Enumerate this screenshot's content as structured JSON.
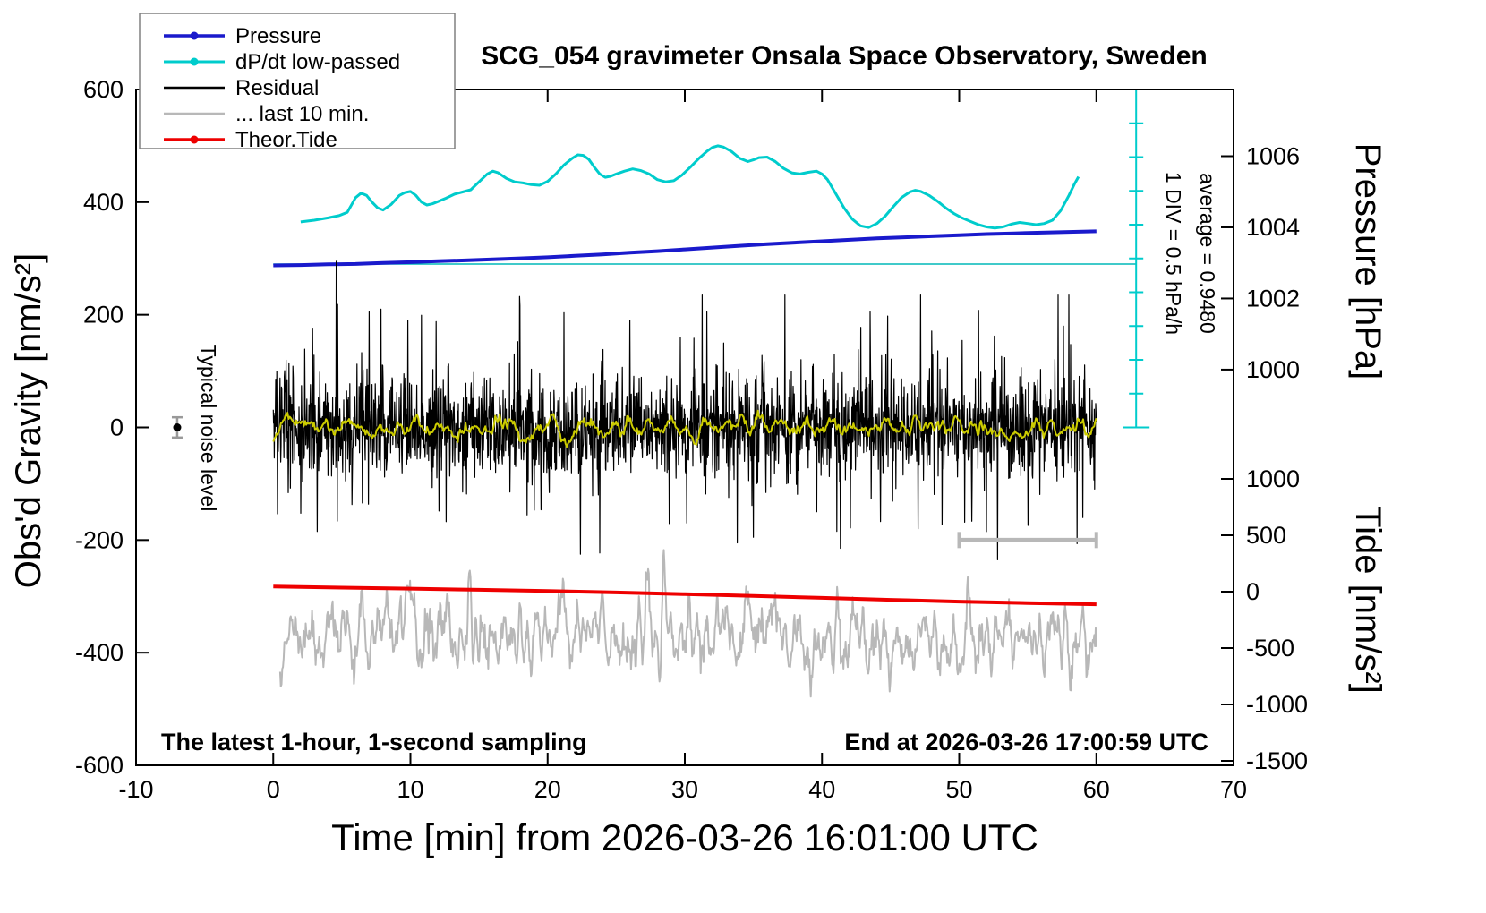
{
  "title": "SCG_054 gravimeter Onsala Space Observatory, Sweden",
  "annotations": {
    "noise_label": "Typical noise level",
    "div_label": "1 DIV = 0.5 hPa/h",
    "average_label": "average = 0.9480",
    "sampling_note": "The latest 1-hour, 1-second sampling",
    "end_note": "End at 2026-03-26 17:00:59 UTC"
  },
  "legend": {
    "items": [
      {
        "key": "pressure",
        "label": "Pressure",
        "color": "#1a1acc",
        "width": 3.5,
        "marker": true
      },
      {
        "key": "dpdt-low-passed",
        "label": "dP/dt low-passed",
        "color": "#00cccc",
        "width": 3,
        "marker": true
      },
      {
        "key": "residual",
        "label": "Residual",
        "color": "#000000",
        "width": 2.5,
        "marker": false
      },
      {
        "key": "last-10-min",
        "label": "... last 10 min.",
        "color": "#b8b8b8",
        "width": 2.5,
        "marker": false
      },
      {
        "key": "theor-tide",
        "label": "Theor.Tide",
        "color": "#ee0000",
        "width": 3.5,
        "marker": true
      }
    ]
  },
  "chart_data": {
    "type": "line",
    "title": "SCG_054 gravimeter Onsala Space Observatory, Sweden",
    "axes": {
      "x": {
        "label": "Time [min] from 2026-03-26 16:01:00 UTC",
        "min": -10,
        "max": 70,
        "ticks": [
          -10,
          0,
          10,
          20,
          30,
          40,
          50,
          60,
          70
        ]
      },
      "gravity": {
        "label": "Obs'd Gravity [nm/s²]",
        "min": -600,
        "max": 600,
        "ticks": [
          -600,
          -400,
          -200,
          0,
          200,
          400,
          600
        ]
      },
      "pressure": {
        "label": "Pressure [hPa]",
        "min": 988.875,
        "max": 1007.875,
        "ticks": [
          1000,
          1002,
          1004,
          1006
        ]
      },
      "tide": {
        "label": "Tide [nm/s²]",
        "min": -1539.7,
        "max": 4452.4,
        "ticks": [
          -1500,
          -1000,
          -500,
          0,
          500,
          1000
        ]
      }
    },
    "series": [
      {
        "name": "dpdt-average-line",
        "label": "dP/dt average line",
        "axis": "gravity",
        "color": "#00b8b8",
        "width": 1.5,
        "points": [
          [
            0,
            290
          ],
          [
            62.9,
            290
          ]
        ]
      },
      {
        "name": "dpdt-low-passed",
        "label": "dP/dt low-passed",
        "axis": "gravity",
        "color": "#00cccc",
        "width": 3,
        "points": [
          [
            2,
            365
          ],
          [
            3,
            368
          ],
          [
            4,
            372
          ],
          [
            4.8,
            376
          ],
          [
            5.4,
            382
          ],
          [
            6,
            408
          ],
          [
            6.4,
            416
          ],
          [
            6.8,
            412
          ],
          [
            7.2,
            400
          ],
          [
            7.6,
            390
          ],
          [
            8,
            386
          ],
          [
            8.6,
            396
          ],
          [
            9.2,
            412
          ],
          [
            9.6,
            417
          ],
          [
            10,
            419
          ],
          [
            10.4,
            412
          ],
          [
            10.8,
            400
          ],
          [
            11.2,
            395
          ],
          [
            11.6,
            397
          ],
          [
            12,
            401
          ],
          [
            12.6,
            407
          ],
          [
            13.2,
            414
          ],
          [
            13.8,
            418
          ],
          [
            14.4,
            422
          ],
          [
            15,
            436
          ],
          [
            15.6,
            450
          ],
          [
            16,
            455
          ],
          [
            16.4,
            452
          ],
          [
            17,
            442
          ],
          [
            17.6,
            436
          ],
          [
            18.2,
            434
          ],
          [
            18.8,
            431
          ],
          [
            19.4,
            430
          ],
          [
            20,
            437
          ],
          [
            20.6,
            450
          ],
          [
            21.2,
            466
          ],
          [
            21.8,
            478
          ],
          [
            22.2,
            484
          ],
          [
            22.6,
            483
          ],
          [
            23,
            476
          ],
          [
            23.4,
            462
          ],
          [
            23.8,
            450
          ],
          [
            24.2,
            444
          ],
          [
            24.6,
            446
          ],
          [
            25,
            450
          ],
          [
            25.6,
            455
          ],
          [
            26.2,
            459
          ],
          [
            26.8,
            456
          ],
          [
            27.4,
            450
          ],
          [
            28,
            440
          ],
          [
            28.6,
            436
          ],
          [
            29.2,
            438
          ],
          [
            29.8,
            448
          ],
          [
            30.4,
            462
          ],
          [
            31,
            477
          ],
          [
            31.6,
            490
          ],
          [
            32,
            497
          ],
          [
            32.4,
            500
          ],
          [
            32.8,
            498
          ],
          [
            33.4,
            490
          ],
          [
            34,
            478
          ],
          [
            34.6,
            472
          ],
          [
            35,
            475
          ],
          [
            35.4,
            479
          ],
          [
            36,
            480
          ],
          [
            36.6,
            472
          ],
          [
            37.2,
            460
          ],
          [
            37.8,
            452
          ],
          [
            38.4,
            450
          ],
          [
            39,
            453
          ],
          [
            39.6,
            455
          ],
          [
            40,
            450
          ],
          [
            40.4,
            440
          ],
          [
            41,
            415
          ],
          [
            41.6,
            390
          ],
          [
            42.2,
            370
          ],
          [
            42.8,
            358
          ],
          [
            43.4,
            355
          ],
          [
            44,
            362
          ],
          [
            44.6,
            375
          ],
          [
            45.2,
            392
          ],
          [
            45.8,
            408
          ],
          [
            46.4,
            418
          ],
          [
            46.8,
            421
          ],
          [
            47.2,
            419
          ],
          [
            47.8,
            412
          ],
          [
            48.4,
            402
          ],
          [
            49,
            390
          ],
          [
            49.6,
            380
          ],
          [
            50.2,
            372
          ],
          [
            50.8,
            366
          ],
          [
            51.4,
            360
          ],
          [
            52,
            356
          ],
          [
            52.6,
            354
          ],
          [
            53.2,
            356
          ],
          [
            53.8,
            361
          ],
          [
            54.4,
            364
          ],
          [
            55,
            362
          ],
          [
            55.6,
            360
          ],
          [
            56.2,
            362
          ],
          [
            56.8,
            368
          ],
          [
            57.4,
            385
          ],
          [
            58,
            412
          ],
          [
            58.4,
            432
          ],
          [
            58.7,
            445
          ]
        ]
      },
      {
        "name": "pressure",
        "label": "Pressure",
        "axis": "pressure",
        "color": "#1a1acc",
        "width": 4,
        "points": [
          [
            0,
            1002.93
          ],
          [
            2,
            1002.94
          ],
          [
            4,
            1002.96
          ],
          [
            6,
            1002.97
          ],
          [
            8,
            1003.0
          ],
          [
            10,
            1003.02
          ],
          [
            12,
            1003.05
          ],
          [
            14,
            1003.07
          ],
          [
            16,
            1003.1
          ],
          [
            18,
            1003.13
          ],
          [
            20,
            1003.16
          ],
          [
            22,
            1003.2
          ],
          [
            24,
            1003.24
          ],
          [
            26,
            1003.29
          ],
          [
            28,
            1003.33
          ],
          [
            30,
            1003.38
          ],
          [
            32,
            1003.43
          ],
          [
            34,
            1003.48
          ],
          [
            36,
            1003.53
          ],
          [
            38,
            1003.57
          ],
          [
            40,
            1003.61
          ],
          [
            42,
            1003.65
          ],
          [
            44,
            1003.69
          ],
          [
            46,
            1003.72
          ],
          [
            48,
            1003.75
          ],
          [
            50,
            1003.78
          ],
          [
            52,
            1003.81
          ],
          [
            54,
            1003.83
          ],
          [
            56,
            1003.85
          ],
          [
            58,
            1003.87
          ],
          [
            60,
            1003.89
          ]
        ]
      },
      {
        "name": "last-10-min",
        "label": "... last 10 min.",
        "axis": "tide",
        "color": "#b8b8b8",
        "width": 2,
        "gen": {
          "kind": "smooth_noise",
          "seed": 11,
          "n": 1150,
          "t0": 0.5,
          "t1": 60,
          "mean": -390,
          "scale": 380,
          "window": 5,
          "clip": [
            -1400,
            530
          ]
        }
      },
      {
        "name": "theor-tide",
        "label": "Theor.Tide",
        "axis": "tide",
        "color": "#ee0000",
        "width": 4,
        "points": [
          [
            0,
            45
          ],
          [
            5,
            36
          ],
          [
            10,
            27
          ],
          [
            15,
            17
          ],
          [
            20,
            6
          ],
          [
            25,
            -7
          ],
          [
            30,
            -22
          ],
          [
            35,
            -38
          ],
          [
            40,
            -55
          ],
          [
            45,
            -72
          ],
          [
            50,
            -88
          ],
          [
            55,
            -101
          ],
          [
            60,
            -112
          ]
        ]
      },
      {
        "name": "residual",
        "label": "Residual",
        "axis": "gravity",
        "color": "#000000",
        "width": 1.2,
        "gen": {
          "kind": "noise",
          "seed": 3,
          "n": 2300,
          "t0": 0,
          "t1": 60,
          "mean": 0,
          "sigma": 40,
          "burst_p": 0.13,
          "burst_sigma": 85,
          "clip": [
            -235,
            235
          ],
          "spikes": [
            [
              4.6,
              295
            ],
            [
              7.0,
              205
            ],
            [
              9.8,
              190
            ],
            [
              22.4,
              -225
            ],
            [
              26,
              190
            ],
            [
              31.6,
              205
            ],
            [
              35,
              -195
            ],
            [
              43.5,
              205
            ],
            [
              47,
              -180
            ],
            [
              52,
              -185
            ],
            [
              57.6,
              180
            ],
            [
              59,
              -160
            ]
          ]
        }
      },
      {
        "name": "residual-low-passed",
        "label": "Residual low-passed",
        "axis": "gravity",
        "color": "#cccc00",
        "width": 2,
        "gen": {
          "kind": "smooth_noise",
          "seed": 5,
          "n": 750,
          "t0": 0,
          "t1": 60,
          "mean": 0,
          "scale": 27,
          "window": 7,
          "clip": [
            -38,
            38
          ]
        }
      }
    ],
    "scalebar": {
      "t": 62.9,
      "axis": "gravity",
      "from": 600,
      "to": 0,
      "tick_step": 60,
      "color": "#00cccc",
      "div_value": "1 DIV = 0.5 hPa/h",
      "average": 0.948
    },
    "noise_marker": {
      "t": -7,
      "axis": "gravity",
      "value": 0,
      "err": 18,
      "dot_color": "#000000",
      "bar_color": "#999999"
    },
    "window_bar": {
      "t0": 50,
      "t1": 60,
      "axis": "gravity",
      "value": -200,
      "color": "#b8b8b8"
    }
  }
}
